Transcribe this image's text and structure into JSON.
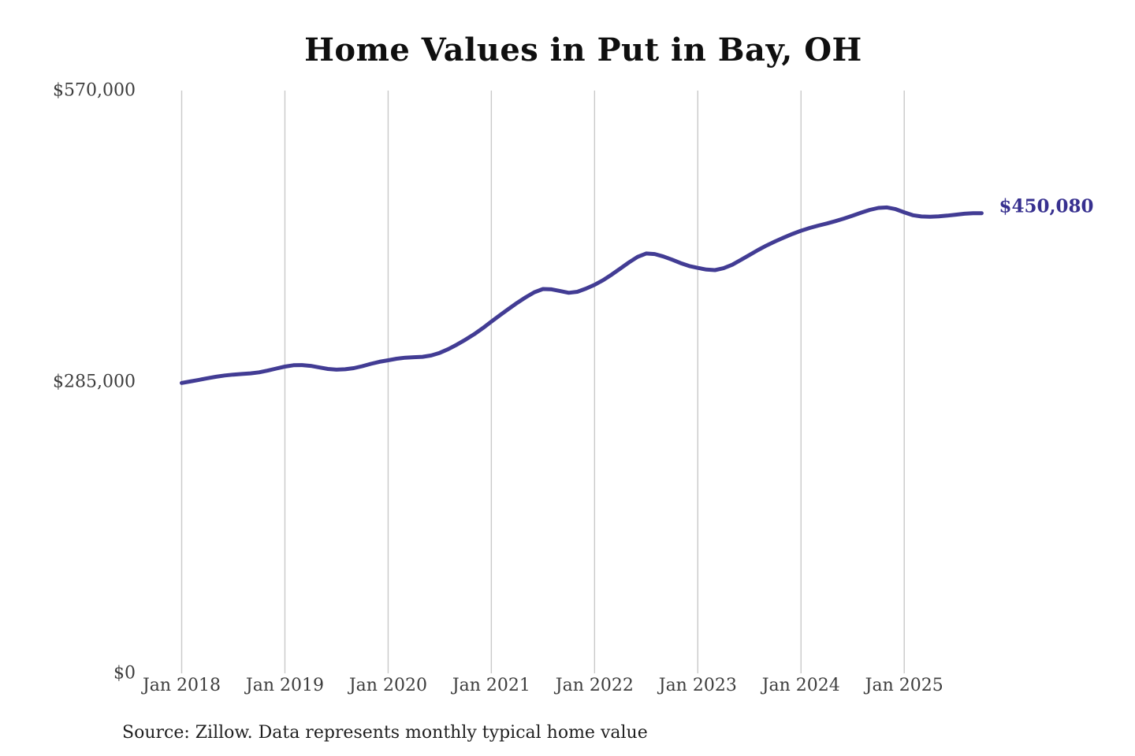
{
  "title": "Home Values in Put in Bay, OH",
  "source_note": "Source: Zillow. Data represents monthly typical home value",
  "end_label": "$450,080",
  "colors": {
    "line": "#423c94",
    "end_label": "#37308f",
    "gridline": "#c9c9c9",
    "axis_text": "#3d3d3d",
    "title_text": "#0f0f0f",
    "background": "#ffffff"
  },
  "chart_data": {
    "type": "line",
    "title": "Home Values in Put in Bay, OH",
    "xlabel": "",
    "ylabel": "",
    "legend": "none",
    "grid": "vertical-only",
    "ylim": [
      0,
      570000
    ],
    "y_ticks": [
      {
        "label": "$570,000",
        "value": 570000
      },
      {
        "label": "$285,000",
        "value": 285000
      },
      {
        "label": "$0",
        "value": 0
      }
    ],
    "x_tick_labels": [
      "Jan 2018",
      "Jan 2019",
      "Jan 2020",
      "Jan 2021",
      "Jan 2022",
      "Jan 2023",
      "Jan 2024",
      "Jan 2025"
    ],
    "x_start": "2018-01",
    "x_end": "2025-10",
    "frequency": "monthly",
    "final_value": 450080,
    "final_value_label": "$450,080",
    "series": [
      {
        "name": "Typical home value (USD)",
        "values": [
          284000,
          285500,
          287000,
          288600,
          290100,
          291300,
          292200,
          292800,
          293400,
          294400,
          296100,
          298100,
          300000,
          301300,
          301500,
          300700,
          299200,
          297700,
          297000,
          297400,
          298500,
          300400,
          302700,
          304700,
          306200,
          307700,
          308700,
          309200,
          309600,
          310900,
          313400,
          317100,
          321500,
          326400,
          331700,
          337600,
          344000,
          350300,
          356400,
          362300,
          367800,
          372700,
          375900,
          375600,
          373900,
          372200,
          373200,
          376300,
          380000,
          384600,
          390100,
          396000,
          401900,
          407300,
          410600,
          410100,
          407700,
          404600,
          401200,
          398400,
          396500,
          394900,
          394400,
          396200,
          399600,
          404300,
          409200,
          414000,
          418500,
          422500,
          426200,
          429700,
          432900,
          435600,
          437900,
          440000,
          442300,
          444800,
          447600,
          450600,
          453300,
          455200,
          455700,
          454000,
          450900,
          448100,
          446800,
          446500,
          447000,
          447700,
          448600,
          449500,
          450000,
          450080
        ]
      }
    ]
  }
}
